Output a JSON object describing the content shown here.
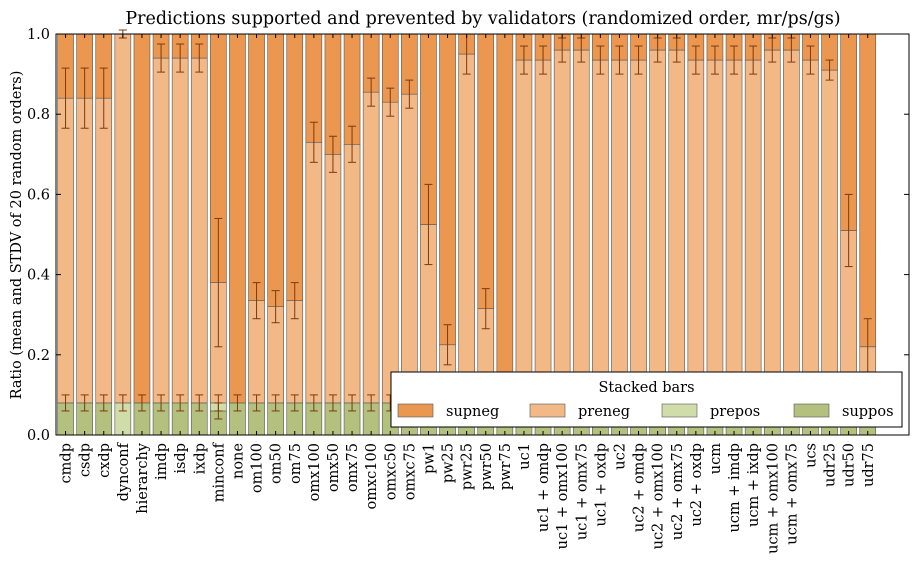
{
  "chart_data": {
    "type": "bar",
    "stacked": true,
    "title": "Predictions supported and prevented by validators (randomized order, mr/ps/gs)",
    "xlabel": "",
    "ylabel": "Ratio (mean and STDV of 20 random orders)",
    "ylim": [
      0,
      1.0
    ],
    "yticks": [
      "0.0",
      "0.2",
      "0.4",
      "0.6",
      "0.8",
      "1.0"
    ],
    "grid": false,
    "legend": {
      "title": "Stacked bars",
      "placement": "lower-right",
      "entries": [
        "supneg",
        "preneg",
        "prepos",
        "suppos"
      ]
    },
    "colors": {
      "supneg": "#ec9750",
      "preneg": "#f2b987",
      "prepos": "#d0dca9",
      "suppos": "#b3c07e",
      "errorbar": "#7a3a10",
      "edge": "#555555"
    },
    "categories": [
      "cmdp",
      "csdp",
      "cxdp",
      "dynconf",
      "hierarchy",
      "imdp",
      "isdp",
      "ixdp",
      "minconf",
      "none",
      "om100",
      "om50",
      "om75",
      "omx100",
      "omx50",
      "omx75",
      "omxc100",
      "omxc50",
      "omxc75",
      "pw1",
      "pw25",
      "pwr25",
      "pwr50",
      "pwr75",
      "uc1",
      "uc1 + omdp",
      "uc1 + omx100",
      "uc1 + omx75",
      "uc1 + oxdp",
      "uc2",
      "uc2 + omdp",
      "uc2 + omx100",
      "uc2 + omx75",
      "uc2 + oxdp",
      "ucm",
      "ucm + imdp",
      "ucm + ixdp",
      "ucm + omx100",
      "ucm + omx75",
      "ucs",
      "udr25",
      "udr50",
      "udr75"
    ],
    "series": [
      {
        "name": "suppos",
        "values": [
          0.08,
          0.08,
          0.08,
          0.0,
          0.08,
          0.08,
          0.08,
          0.08,
          0.06,
          0.08,
          0.08,
          0.08,
          0.08,
          0.08,
          0.08,
          0.08,
          0.08,
          0.08,
          0.08,
          0.08,
          0.08,
          0.08,
          0.08,
          0.08,
          0.08,
          0.08,
          0.08,
          0.08,
          0.08,
          0.08,
          0.08,
          0.08,
          0.08,
          0.08,
          0.08,
          0.08,
          0.08,
          0.08,
          0.08,
          0.08,
          0.08,
          0.08,
          0.08
        ]
      },
      {
        "name": "prepos",
        "values": [
          0.0,
          0.0,
          0.0,
          0.08,
          0.0,
          0.0,
          0.0,
          0.0,
          0.02,
          0.0,
          0.0,
          0.0,
          0.0,
          0.0,
          0.0,
          0.0,
          0.0,
          0.0,
          0.0,
          0.0,
          0.0,
          0.0,
          0.0,
          0.0,
          0.0,
          0.0,
          0.0,
          0.0,
          0.0,
          0.0,
          0.0,
          0.0,
          0.0,
          0.0,
          0.0,
          0.0,
          0.0,
          0.0,
          0.0,
          0.0,
          0.0,
          0.0,
          0.0
        ]
      },
      {
        "name": "preneg",
        "values": [
          0.76,
          0.76,
          0.76,
          0.92,
          0.0,
          0.86,
          0.86,
          0.86,
          0.3,
          0.0,
          0.255,
          0.24,
          0.255,
          0.65,
          0.62,
          0.645,
          0.775,
          0.75,
          0.77,
          0.445,
          0.145,
          0.87,
          0.235,
          0.0,
          0.855,
          0.855,
          0.88,
          0.88,
          0.855,
          0.855,
          0.855,
          0.88,
          0.88,
          0.855,
          0.855,
          0.855,
          0.855,
          0.88,
          0.88,
          0.855,
          0.83,
          0.43,
          0.14
        ]
      },
      {
        "name": "supneg",
        "values": [
          0.16,
          0.16,
          0.16,
          0.0,
          0.92,
          0.06,
          0.06,
          0.06,
          0.62,
          0.92,
          0.665,
          0.68,
          0.665,
          0.27,
          0.3,
          0.275,
          0.145,
          0.17,
          0.15,
          0.475,
          0.775,
          0.05,
          0.685,
          0.92,
          0.065,
          0.065,
          0.04,
          0.04,
          0.065,
          0.065,
          0.065,
          0.04,
          0.04,
          0.065,
          0.065,
          0.065,
          0.065,
          0.04,
          0.04,
          0.065,
          0.09,
          0.49,
          0.78
        ]
      }
    ],
    "error_bars": {
      "suppos": [
        0.02,
        0.02,
        0.02,
        0.0,
        0.02,
        0.02,
        0.02,
        0.02,
        0.02,
        0.02,
        0.02,
        0.02,
        0.02,
        0.02,
        0.02,
        0.02,
        0.02,
        0.02,
        0.02,
        0.02,
        0.02,
        0.02,
        0.02,
        0.02,
        0.02,
        0.02,
        0.02,
        0.02,
        0.02,
        0.02,
        0.02,
        0.02,
        0.02,
        0.02,
        0.02,
        0.02,
        0.02,
        0.02,
        0.02,
        0.02,
        0.02,
        0.02,
        0.02
      ],
      "prepos": [
        0.0,
        0.0,
        0.0,
        0.02,
        0.0,
        0.0,
        0.0,
        0.0,
        0.02,
        0.0,
        0.0,
        0.0,
        0.0,
        0.0,
        0.0,
        0.0,
        0.0,
        0.0,
        0.0,
        0.0,
        0.0,
        0.0,
        0.0,
        0.0,
        0.0,
        0.0,
        0.0,
        0.0,
        0.0,
        0.0,
        0.0,
        0.0,
        0.0,
        0.0,
        0.0,
        0.0,
        0.0,
        0.0,
        0.0,
        0.0,
        0.0,
        0.0,
        0.0
      ],
      "preneg": [
        0.075,
        0.075,
        0.075,
        0.01,
        0.0,
        0.035,
        0.035,
        0.035,
        0.16,
        0.0,
        0.045,
        0.04,
        0.045,
        0.05,
        0.045,
        0.045,
        0.035,
        0.035,
        0.035,
        0.1,
        0.05,
        0.05,
        0.05,
        0.04,
        0.035,
        0.035,
        0.03,
        0.03,
        0.035,
        0.035,
        0.035,
        0.03,
        0.03,
        0.035,
        0.035,
        0.035,
        0.035,
        0.03,
        0.03,
        0.035,
        0.025,
        0.09,
        0.07
      ]
    }
  }
}
